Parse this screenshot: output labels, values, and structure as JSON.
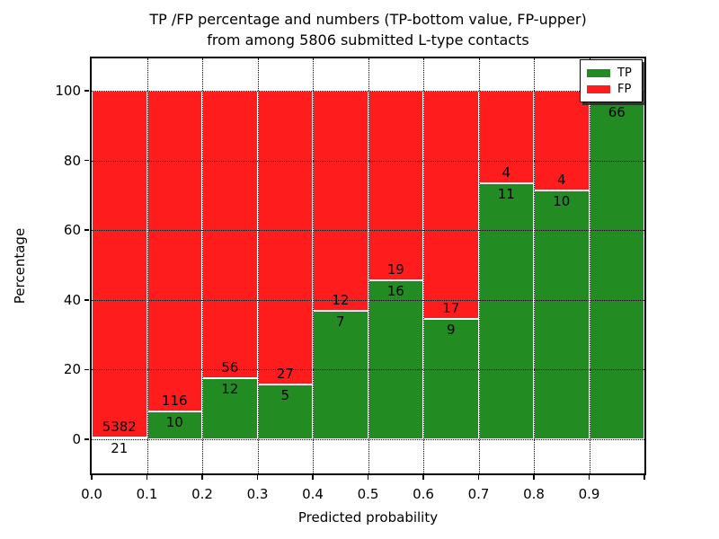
{
  "title_lines": [
    "TP /FP percentage and numbers (TP-bottom value, FP-upper)",
    "from among 5806 submitted L-type contacts"
  ],
  "chart_data": {
    "type": "bar",
    "stacked": true,
    "title": "TP /FP percentage and numbers (TP-bottom value, FP-upper) from among 5806 submitted L-type contacts",
    "xlabel": "Predicted probability",
    "ylabel": "Percentage",
    "xlim": [
      0.0,
      1.0
    ],
    "ylim": [
      -10,
      110
    ],
    "grid": "dotted black, on both axes, drawn over bars",
    "x_tick_labels": [
      "0.0",
      "0.1",
      "0.2",
      "0.3",
      "0.4",
      "0.5",
      "0.6",
      "0.7",
      "0.8",
      "0.9"
    ],
    "y_tick_values": [
      0,
      20,
      40,
      60,
      80,
      100
    ],
    "legend": {
      "position": "upper right",
      "entries": [
        {
          "label": "TP",
          "color": "#228b22"
        },
        {
          "label": "FP",
          "color": "#ff1c1c"
        }
      ]
    },
    "colors": {
      "tp": "#228b22",
      "fp": "#ff1c1c",
      "bar_edge": "#ffffff"
    },
    "bins": [
      {
        "x0": 0.0,
        "x1": 0.1,
        "tp_pct": 0.39,
        "fp_pct": 99.61,
        "tp_label": "21",
        "fp_label": "5382"
      },
      {
        "x0": 0.1,
        "x1": 0.2,
        "tp_pct": 7.94,
        "fp_pct": 92.06,
        "tp_label": "10",
        "fp_label": "116"
      },
      {
        "x0": 0.2,
        "x1": 0.3,
        "tp_pct": 17.65,
        "fp_pct": 82.35,
        "tp_label": "12",
        "fp_label": "56"
      },
      {
        "x0": 0.3,
        "x1": 0.4,
        "tp_pct": 15.63,
        "fp_pct": 84.37,
        "tp_label": "5",
        "fp_label": "27"
      },
      {
        "x0": 0.4,
        "x1": 0.5,
        "tp_pct": 36.84,
        "fp_pct": 63.16,
        "tp_label": "7",
        "fp_label": "12"
      },
      {
        "x0": 0.5,
        "x1": 0.6,
        "tp_pct": 45.71,
        "fp_pct": 54.29,
        "tp_label": "16",
        "fp_label": "19"
      },
      {
        "x0": 0.6,
        "x1": 0.7,
        "tp_pct": 34.62,
        "fp_pct": 65.38,
        "tp_label": "9",
        "fp_label": "17"
      },
      {
        "x0": 0.7,
        "x1": 0.8,
        "tp_pct": 73.33,
        "fp_pct": 26.67,
        "tp_label": "11",
        "fp_label": "4"
      },
      {
        "x0": 0.8,
        "x1": 0.9,
        "tp_pct": 71.43,
        "fp_pct": 28.57,
        "tp_label": "10",
        "fp_label": "4"
      },
      {
        "x0": 0.9,
        "x1": 1.0,
        "tp_pct": 97.0,
        "fp_pct": 3.0,
        "tp_label": "66",
        "fp_label": ""
      }
    ]
  }
}
